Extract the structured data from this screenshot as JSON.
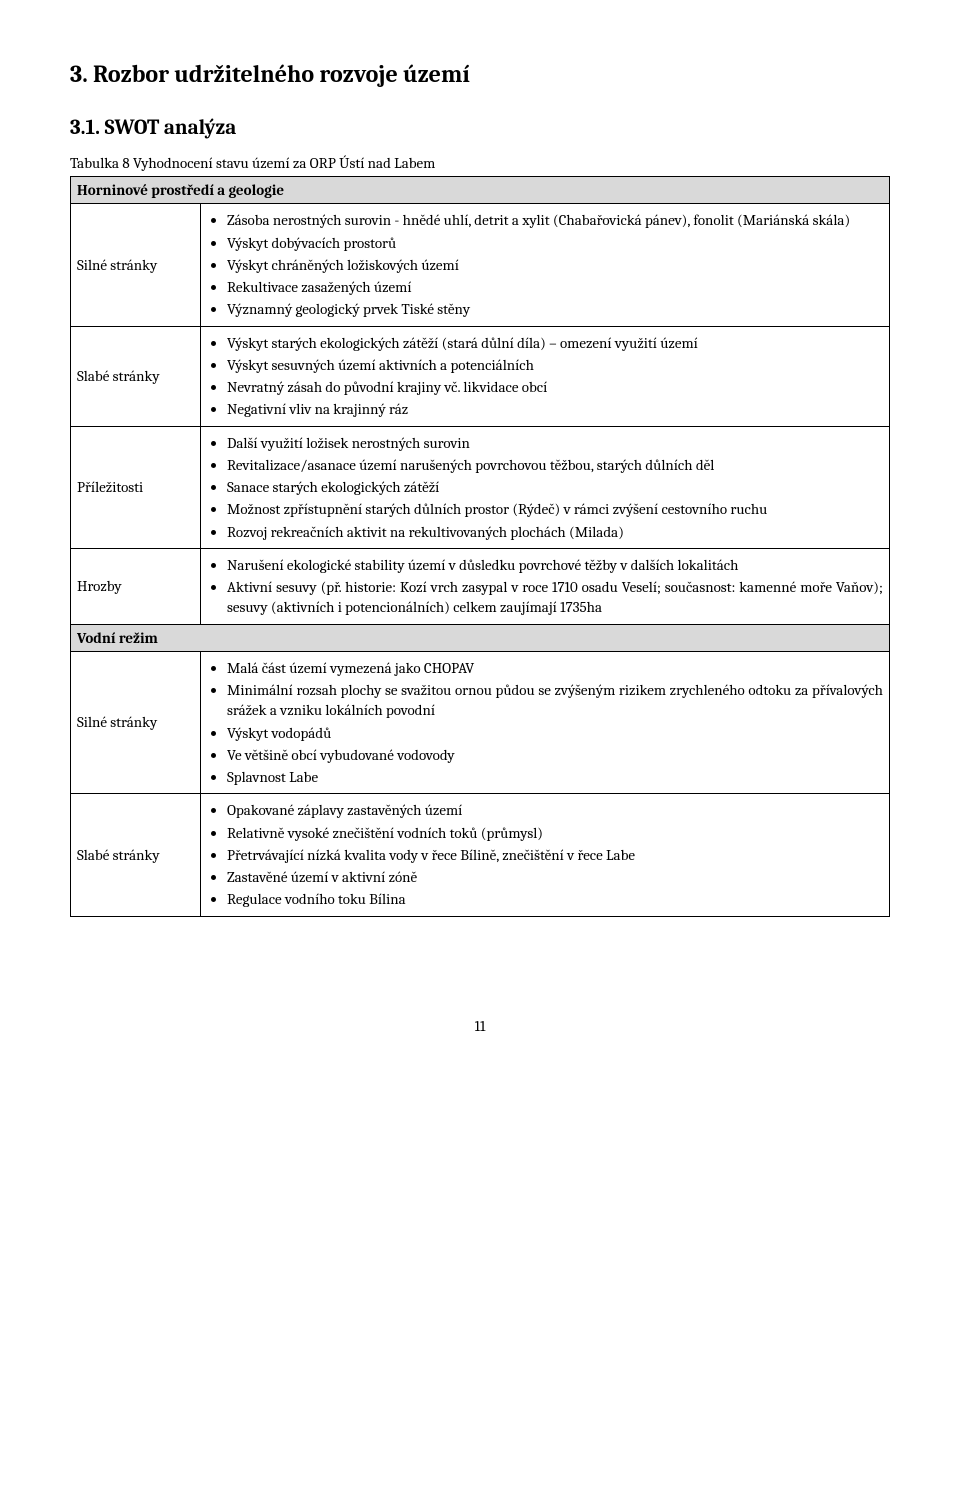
{
  "section_heading": "3. Rozbor udržitelného rozvoje území",
  "subsection_heading": "3.1.   SWOT analýza",
  "table_caption": "Tabulka 8 Vyhodnocení stavu území za ORP Ústí nad Labem",
  "categories": [
    {
      "title": "Horninové prostředí a geologie",
      "rows": [
        {
          "label": "Silné stránky",
          "items": [
            "Zásoba nerostných surovin - hnědé uhlí, detrit a xylit (Chabařovická pánev), fonolit (Mariánská skála)",
            "Výskyt dobývacích prostorů",
            "Výskyt chráněných ložiskových území",
            "Rekultivace zasažených území",
            "Významný geologický prvek Tiské stěny"
          ]
        },
        {
          "label": "Slabé stránky",
          "items": [
            "Výskyt starých ekologických zátěží (stará důlní díla) – omezení využití území",
            "Výskyt sesuvných území aktivních a potenciálních",
            "Nevratný zásah do původní krajiny vč. likvidace obcí",
            "Negativní vliv na krajinný ráz"
          ]
        },
        {
          "label": "Příležitosti",
          "items": [
            "Další využití ložisek nerostných surovin",
            "Revitalizace/asanace území narušených povrchovou těžbou, starých důlních děl",
            "Sanace starých ekologických zátěží",
            "Možnost zpřístupnění starých důlních prostor (Rýdeč) v rámci zvýšení cestovního ruchu",
            "Rozvoj rekreačních aktivit na rekultivovaných plochách (Milada)"
          ]
        },
        {
          "label": "Hrozby",
          "items": [
            "Narušení ekologické stability území v důsledku povrchové těžby v dalších lokalitách",
            "Aktivní sesuvy (př. historie: Kozí vrch zasypal v roce 1710 osadu Veselí; současnost: kamenné moře Vaňov); sesuvy (aktivních i potencionálních) celkem zaujímají 1735ha"
          ]
        }
      ]
    },
    {
      "title": "Vodní režim",
      "rows": [
        {
          "label": "Silné stránky",
          "items": [
            "Malá část území vymezená jako CHOPAV",
            "Minimální rozsah plochy se svažitou ornou půdou se zvýšeným rizikem zrychleného odtoku za přívalových srážek a vzniku lokálních povodní",
            "Výskyt vodopádů",
            "Ve většině obcí vybudované vodovody",
            "Splavnost Labe"
          ]
        },
        {
          "label": "Slabé stránky",
          "items": [
            "Opakované záplavy zastavěných území",
            "Relativně vysoké znečištění vodních toků (průmysl)",
            "Přetrvávající nízká kvalita vody v řece Bílině, znečištění v řece Labe",
            "Zastavěné území v aktivní zóně",
            "Regulace vodního toku Bílina"
          ]
        }
      ]
    }
  ],
  "page_number": "11"
}
